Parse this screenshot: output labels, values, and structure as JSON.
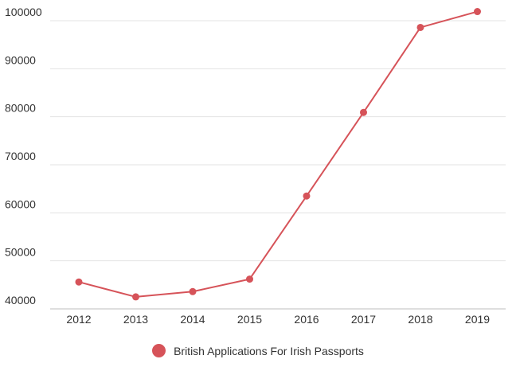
{
  "chart_data": {
    "type": "line",
    "x": [
      "2012",
      "2013",
      "2014",
      "2015",
      "2016",
      "2017",
      "2018",
      "2019"
    ],
    "series": [
      {
        "name": "British Applications For Irish Passports",
        "values": [
          45600,
          42500,
          43600,
          46200,
          63500,
          80900,
          98600,
          101900
        ],
        "color": "#d65359"
      }
    ],
    "y_ticks": [
      "40000",
      "50000",
      "60000",
      "70000",
      "80000",
      "90000",
      "100000"
    ],
    "ylim": [
      40000,
      102000
    ],
    "grid": true,
    "legend_position": "bottom-center"
  }
}
